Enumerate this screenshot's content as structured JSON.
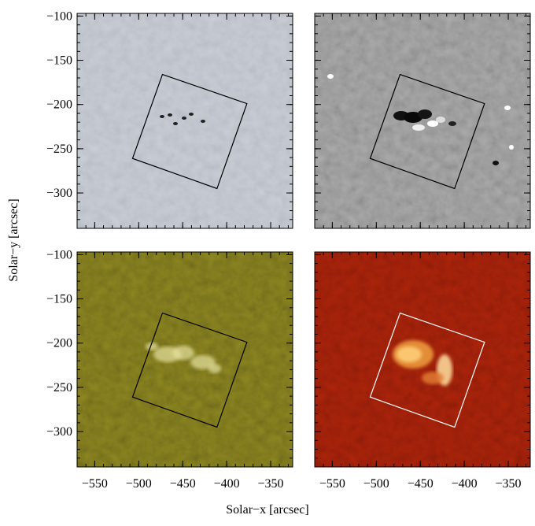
{
  "chart_data": {
    "type": "image",
    "xlabel": "Solar−x   [arcsec]",
    "ylabel": "Solar−y   [arcsec]",
    "xlim": [
      -570,
      -325
    ],
    "ylim": [
      -340,
      -97
    ],
    "xticks": [
      {
        "value": -550,
        "label": "−550"
      },
      {
        "value": -500,
        "label": "−500"
      },
      {
        "value": -450,
        "label": "−450"
      },
      {
        "value": -400,
        "label": "−400"
      },
      {
        "value": -350,
        "label": "−350"
      }
    ],
    "yticks": [
      {
        "value": -100,
        "label": "−100"
      },
      {
        "value": -150,
        "label": "−150"
      },
      {
        "value": -200,
        "label": "−200"
      },
      {
        "value": -250,
        "label": "−250"
      },
      {
        "value": -300,
        "label": "−300"
      }
    ],
    "box": {
      "x": [
        -473,
        -377,
        -411,
        -507
      ],
      "y": [
        -166,
        -199,
        -295,
        -261
      ]
    },
    "panels": [
      {
        "color": "#b6bbc5",
        "box_color": "#000000"
      },
      {
        "color": "#8c8c8c",
        "box_color": "#000000"
      },
      {
        "color": "#6f6a1a",
        "box_color": "#000000"
      },
      {
        "color": "#8e1c08",
        "box_color": "#ffffff"
      }
    ]
  }
}
